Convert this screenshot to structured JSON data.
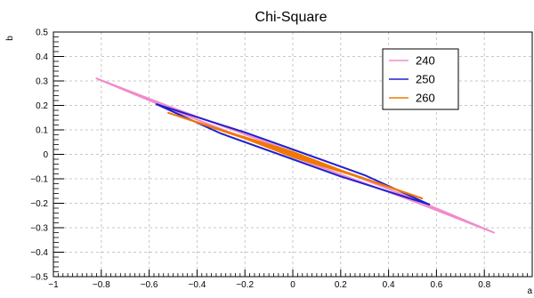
{
  "chart_data": {
    "type": "line",
    "title": "Chi-Square",
    "xlabel": "a",
    "ylabel": "b",
    "xlim": [
      -1,
      1
    ],
    "ylim": [
      -0.5,
      0.5
    ],
    "xticks": [
      -1,
      -0.8,
      -0.6,
      -0.4,
      -0.2,
      0,
      0.2,
      0.4,
      0.6,
      0.8
    ],
    "xtick_labels": [
      "−1",
      "−0.8",
      "−0.6",
      "−0.4",
      "−0.2",
      "0",
      "0.2",
      "0.4",
      "0.6",
      "0.8"
    ],
    "yticks": [
      -0.5,
      -0.4,
      -0.3,
      -0.2,
      -0.1,
      0,
      0.1,
      0.2,
      0.3,
      0.4,
      0.5
    ],
    "ytick_labels": [
      "−0.5",
      "−0.4",
      "−0.3",
      "−0.2",
      "−0.1",
      "0",
      "0.1",
      "0.2",
      "0.3",
      "0.4",
      "0.5"
    ],
    "grid": true,
    "legend_position": "top-right",
    "series": [
      {
        "name": "240",
        "color": "#f08cc8",
        "x": [
          -0.82,
          -0.5,
          0.0,
          0.5,
          0.84,
          0.5,
          0.0,
          -0.5,
          -0.82
        ],
        "y": [
          0.31,
          0.19,
          0.01,
          -0.18,
          -0.32,
          -0.19,
          -0.01,
          0.18,
          0.31
        ]
      },
      {
        "name": "250",
        "color": "#2020d0",
        "x": [
          -0.57,
          -0.2,
          0.0,
          0.3,
          0.57,
          0.2,
          0.0,
          -0.3,
          -0.57
        ],
        "y": [
          0.205,
          0.09,
          0.02,
          -0.085,
          -0.205,
          -0.09,
          -0.02,
          0.085,
          0.205
        ]
      },
      {
        "name": "260",
        "color": "#f07800",
        "x": [
          -0.52,
          -0.2,
          0.0,
          0.3,
          0.54,
          0.2,
          0.0,
          -0.3,
          -0.52
        ],
        "y": [
          0.17,
          0.065,
          -0.01,
          -0.1,
          -0.18,
          -0.065,
          0.01,
          0.1,
          0.17
        ]
      }
    ]
  }
}
